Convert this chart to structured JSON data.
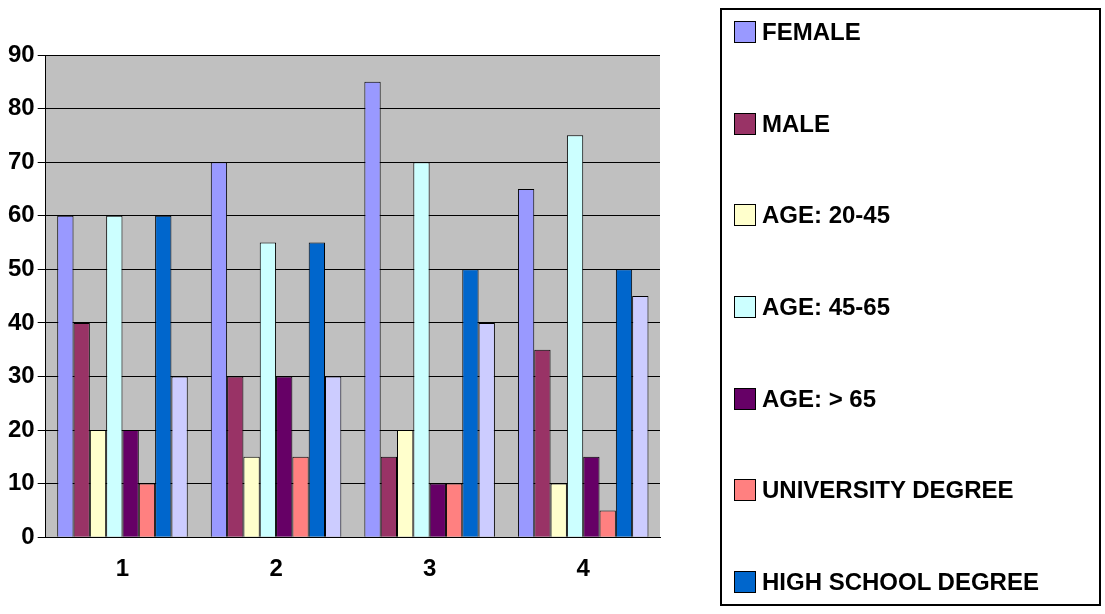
{
  "chart_data": {
    "type": "bar",
    "categories": [
      "1",
      "2",
      "3",
      "4"
    ],
    "series": [
      {
        "name": "FEMALE",
        "color": "#9999ff",
        "values": [
          60,
          70,
          85,
          65
        ]
      },
      {
        "name": "MALE",
        "color": "#993366",
        "values": [
          40,
          30,
          15,
          35
        ]
      },
      {
        "name": "AGE: 20-45",
        "color": "#ffffcc",
        "values": [
          20,
          15,
          20,
          10
        ]
      },
      {
        "name": "AGE: 45-65",
        "color": "#ccffff",
        "values": [
          60,
          55,
          70,
          75
        ]
      },
      {
        "name": "AGE: > 65",
        "color": "#660066",
        "values": [
          20,
          30,
          10,
          15
        ]
      },
      {
        "name": "UNIVERSITY DEGREE",
        "color": "#ff8080",
        "values": [
          10,
          15,
          10,
          5
        ]
      },
      {
        "name": "HIGH SCHOOL DEGREE",
        "color": "#0066cc",
        "values": [
          60,
          55,
          50,
          50
        ]
      },
      {
        "color": "#ccccff",
        "values": [
          30,
          30,
          40,
          45
        ]
      }
    ],
    "ylim": [
      0,
      90
    ],
    "yticks": [
      0,
      10,
      20,
      30,
      40,
      50,
      60,
      70,
      80,
      90
    ],
    "grid": "y",
    "legend": "right"
  }
}
